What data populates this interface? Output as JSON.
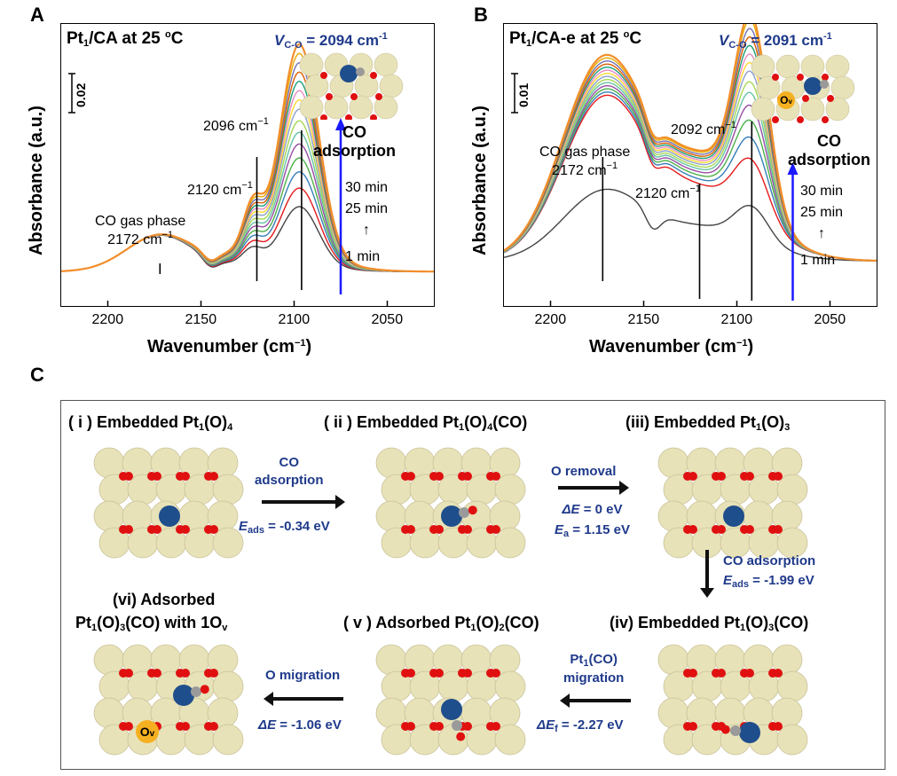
{
  "figure": {
    "panel_a": "A",
    "panel_b": "B",
    "panel_c": "C"
  },
  "chart_data": [
    {
      "type": "line",
      "title": "Pt1/CA at 25 °C",
      "title_parts": {
        "pre": "Pt",
        "sub": "1",
        "post": "/CA at 25 ",
        "deg": "o",
        "end": "C"
      },
      "vco_label": {
        "v": "V",
        "sub": "C-O",
        "value": " = 2094 cm",
        "sup": "-1"
      },
      "xlabel": "Wavenumber (cm",
      "xlabel_sup": "−1",
      "xlabel_end": ")",
      "ylabel": "Absorbance (a.u.)",
      "xlim": [
        2225,
        2025
      ],
      "xticks": [
        "2200",
        "2150",
        "2100",
        "2050"
      ],
      "xtick_values": [
        2200,
        2150,
        2100,
        2050
      ],
      "scale_bar": "0.02",
      "annotations": {
        "peak_main": "2096 cm",
        "peak_mid": "2120 cm",
        "gas_phase_1": "CO gas phase",
        "gas_phase_2": "2172 cm",
        "sup": "−1",
        "co_1": "CO",
        "co_2": "adsorption",
        "t30": "30 min",
        "t25": "25 min",
        "t1": "1 min"
      },
      "vlines": [
        2172,
        2120,
        2096,
        2075
      ],
      "series_colors": [
        "#444444",
        "#e41a1c",
        "#377eb8",
        "#4daf4a",
        "#984ea3",
        "#66c2a5",
        "#a6d854",
        "#8da0cb",
        "#ffd92f",
        "#e78ac3",
        "#1b9e77",
        "#d95f02",
        "#7570b3",
        "#e6ab02",
        "#f28e2b"
      ],
      "peak_scale": [
        0.28,
        0.36,
        0.43,
        0.49,
        0.55,
        0.6,
        0.65,
        0.7,
        0.74,
        0.78,
        0.82,
        0.86,
        0.9,
        0.94,
        0.98
      ]
    },
    {
      "type": "line",
      "title": "Pt1/CA-e at 25 °C",
      "title_parts": {
        "pre": "Pt",
        "sub": "1",
        "post": "/CA-e at 25 ",
        "deg": "o",
        "end": "C"
      },
      "vco_label": {
        "v": "V",
        "sub": "C-O",
        "value": " = 2091 cm",
        "sup": "-1"
      },
      "xlabel": "Wavenumber (cm",
      "xlabel_sup": "−1",
      "xlabel_end": ")",
      "ylabel": "Absorbance (a.u.)",
      "xlim": [
        2225,
        2025
      ],
      "xticks": [
        "2200",
        "2150",
        "2100",
        "2050"
      ],
      "xtick_values": [
        2200,
        2150,
        2100,
        2050
      ],
      "scale_bar": "0.01",
      "annotations": {
        "peak_main": "2092 cm",
        "peak_mid": "2120 cm",
        "gas_phase_1": "CO gas phase",
        "gas_phase_2": "2172 cm",
        "sup": "−1",
        "co_1": "CO",
        "co_2": "adsorption",
        "t30": "30 min",
        "t25": "25 min",
        "t1": "1 min",
        "ov": "O",
        "ov_sub": "v"
      },
      "vlines": [
        2172,
        2120,
        2092,
        2070
      ],
      "series_colors": [
        "#444444",
        "#e41a1c",
        "#377eb8",
        "#4daf4a",
        "#984ea3",
        "#66c2a5",
        "#a6d854",
        "#8da0cb",
        "#ffd92f",
        "#e78ac3",
        "#1b9e77",
        "#d95f02",
        "#7570b3",
        "#e6ab02",
        "#f28e2b"
      ],
      "peak_scale": [
        0.18,
        0.3,
        0.4,
        0.48,
        0.55,
        0.61,
        0.66,
        0.71,
        0.75,
        0.79,
        0.83,
        0.87,
        0.91,
        0.95,
        0.98
      ]
    }
  ],
  "panel_c": {
    "s1": {
      "pre": "( i ) Embedded Pt",
      "sub": "1",
      "mid": "(O)",
      "sub2": "4",
      "end": ""
    },
    "s2": {
      "pre": "( ii ) Embedded Pt",
      "sub": "1",
      "mid": "(O)",
      "sub2": "4",
      "end": "(CO)"
    },
    "s3": {
      "pre": "(iii) Embedded Pt",
      "sub": "1",
      "mid": "(O)",
      "sub2": "3",
      "end": ""
    },
    "s4": {
      "pre": "(iv) Embedded Pt",
      "sub": "1",
      "mid": "(O)",
      "sub2": "3",
      "end": "(CO)"
    },
    "s5": {
      "pre": "( v ) Adsorbed Pt",
      "sub": "1",
      "mid": "(O)",
      "sub2": "2",
      "end": "(CO)"
    },
    "s6a": "(vi) Adsorbed",
    "s6b": {
      "pre": "Pt",
      "sub": "1",
      "mid": "(O)",
      "sub2": "3",
      "end": "(CO) with 1O",
      "sub3": "v"
    },
    "steps": {
      "co_ads_1": "CO",
      "co_ads_2": "adsorption",
      "eads_1": "E",
      "eads_1_sub": "ads",
      "eads_1_val": " = -0.34 eV",
      "o_removal": "O removal",
      "de_0": "ΔE",
      "de_0_val": " = 0 eV",
      "ea": "E",
      "ea_sub": "a",
      "ea_val": " = 1.15 eV",
      "co_ads_v": "CO adsorption",
      "eads_2": "E",
      "eads_2_sub": "ads",
      "eads_2_val": " = -1.99 eV",
      "pt_mig_1": "Pt",
      "pt_mig_1_sub": "1",
      "pt_mig_1_end": "(CO)",
      "pt_mig_2": "migration",
      "def": "ΔE",
      "def_sub": "f",
      "def_val": " = -2.27 eV",
      "o_mig": "O migration",
      "de_6": "ΔE",
      "de_6_val": " = -1.06 eV"
    },
    "ov_label": "O",
    "ov_sub": "v"
  },
  "colors": {
    "blue_text": "#1f3a8a",
    "arrow_blue": "#1a1aff",
    "atom_o": "#e8e2b8",
    "atom_red": "#e01010",
    "atom_pt": "#1f4e8c",
    "atom_c": "#9a9a9a",
    "ov": "#f5b021"
  }
}
